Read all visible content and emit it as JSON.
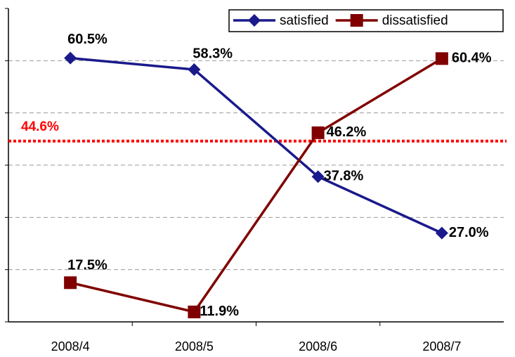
{
  "chart_data": {
    "type": "line",
    "categories": [
      "2008/4",
      "2008/5",
      "2008/6",
      "2008/7"
    ],
    "series": [
      {
        "name": "satisfied",
        "color": "#1a1a8c",
        "marker": "diamond",
        "values": [
          60.5,
          58.3,
          37.8,
          27.0
        ],
        "value_labels": [
          "60.5%",
          "58.3%",
          "37.8%",
          "27.0%"
        ]
      },
      {
        "name": "dissatisfied",
        "color": "#800000",
        "marker": "square",
        "values": [
          17.5,
          11.9,
          46.2,
          60.4
        ],
        "value_labels": [
          "17.5%",
          "11.9%",
          "46.2%",
          "60.4%"
        ]
      }
    ],
    "reference_line": {
      "value": 44.6,
      "label": "44.6%",
      "color": "#ff0000"
    },
    "ylim": [
      10,
      70
    ],
    "yticks": [
      10,
      20,
      30,
      40,
      50,
      60,
      70
    ],
    "grid": true,
    "legend": "top-right"
  }
}
